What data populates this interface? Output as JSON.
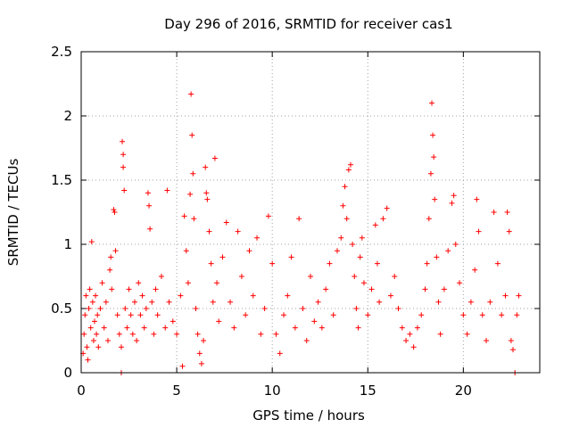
{
  "chart_data": {
    "type": "scatter",
    "title": "Day 296 of 2016, SRMTID for receiver cas1",
    "xlabel": "GPS time / hours",
    "ylabel": "SRMTID / TECUs",
    "xlim": [
      0,
      24
    ],
    "ylim": [
      0,
      2.5
    ],
    "xticks": [
      "0",
      "5",
      "10",
      "15",
      "20"
    ],
    "yticks": [
      "0",
      "0.5",
      "1",
      "1.5",
      "2",
      "2.5"
    ],
    "grid": true,
    "legend": "none",
    "marker": "plus",
    "series": [
      {
        "name": "SRMTID",
        "color": "#ff0000",
        "points": [
          [
            0.1,
            0.15
          ],
          [
            0.15,
            0.3
          ],
          [
            0.2,
            0.45
          ],
          [
            0.25,
            0.6
          ],
          [
            0.3,
            0.2
          ],
          [
            0.35,
            0.1
          ],
          [
            0.4,
            0.5
          ],
          [
            0.45,
            0.65
          ],
          [
            0.5,
            0.35
          ],
          [
            0.55,
            1.02
          ],
          [
            0.6,
            0.55
          ],
          [
            0.65,
            0.25
          ],
          [
            0.7,
            0.4
          ],
          [
            0.75,
            0.6
          ],
          [
            0.8,
            0.3
          ],
          [
            0.85,
            0.45
          ],
          [
            0.9,
            0.2
          ],
          [
            1.0,
            0.5
          ],
          [
            1.1,
            0.7
          ],
          [
            1.2,
            0.35
          ],
          [
            1.3,
            0.55
          ],
          [
            1.4,
            0.25
          ],
          [
            1.5,
            0.8
          ],
          [
            1.55,
            0.9
          ],
          [
            1.6,
            0.65
          ],
          [
            1.7,
            1.27
          ],
          [
            1.75,
            1.25
          ],
          [
            1.8,
            0.95
          ],
          [
            1.9,
            0.45
          ],
          [
            2.0,
            0.3
          ],
          [
            2.1,
            0.2
          ],
          [
            2.1,
            0.0
          ],
          [
            2.15,
            1.8
          ],
          [
            2.2,
            1.7
          ],
          [
            2.2,
            1.6
          ],
          [
            2.25,
            1.42
          ],
          [
            2.3,
            0.5
          ],
          [
            2.4,
            0.35
          ],
          [
            2.5,
            0.65
          ],
          [
            2.6,
            0.45
          ],
          [
            2.7,
            0.3
          ],
          [
            2.8,
            0.55
          ],
          [
            2.9,
            0.25
          ],
          [
            3.0,
            0.7
          ],
          [
            3.1,
            0.45
          ],
          [
            3.2,
            0.6
          ],
          [
            3.3,
            0.35
          ],
          [
            3.4,
            0.5
          ],
          [
            3.5,
            1.4
          ],
          [
            3.55,
            1.3
          ],
          [
            3.6,
            1.12
          ],
          [
            3.7,
            0.55
          ],
          [
            3.8,
            0.3
          ],
          [
            3.9,
            0.65
          ],
          [
            4.0,
            0.45
          ],
          [
            4.2,
            0.75
          ],
          [
            4.4,
            0.35
          ],
          [
            4.5,
            1.42
          ],
          [
            4.6,
            0.55
          ],
          [
            4.8,
            0.4
          ],
          [
            5.0,
            0.3
          ],
          [
            5.2,
            0.6
          ],
          [
            5.3,
            0.05
          ],
          [
            5.4,
            1.22
          ],
          [
            5.5,
            0.95
          ],
          [
            5.6,
            0.7
          ],
          [
            5.7,
            1.39
          ],
          [
            5.75,
            2.17
          ],
          [
            5.8,
            1.85
          ],
          [
            5.85,
            1.55
          ],
          [
            5.9,
            1.2
          ],
          [
            6.0,
            0.5
          ],
          [
            6.1,
            0.3
          ],
          [
            6.2,
            0.15
          ],
          [
            6.3,
            0.07
          ],
          [
            6.4,
            0.25
          ],
          [
            6.5,
            1.6
          ],
          [
            6.55,
            1.4
          ],
          [
            6.6,
            1.35
          ],
          [
            6.7,
            1.1
          ],
          [
            6.8,
            0.85
          ],
          [
            6.9,
            0.55
          ],
          [
            7.0,
            1.67
          ],
          [
            7.1,
            0.7
          ],
          [
            7.2,
            0.4
          ],
          [
            7.4,
            0.9
          ],
          [
            7.6,
            1.17
          ],
          [
            7.8,
            0.55
          ],
          [
            8.0,
            0.35
          ],
          [
            8.2,
            1.1
          ],
          [
            8.4,
            0.75
          ],
          [
            8.6,
            0.45
          ],
          [
            8.8,
            0.95
          ],
          [
            9.0,
            0.6
          ],
          [
            9.2,
            1.05
          ],
          [
            9.4,
            0.3
          ],
          [
            9.6,
            0.5
          ],
          [
            9.8,
            1.22
          ],
          [
            10.0,
            0.85
          ],
          [
            10.2,
            0.3
          ],
          [
            10.4,
            0.15
          ],
          [
            10.6,
            0.45
          ],
          [
            10.8,
            0.6
          ],
          [
            11.0,
            0.9
          ],
          [
            11.2,
            0.35
          ],
          [
            11.4,
            1.2
          ],
          [
            11.6,
            0.5
          ],
          [
            11.8,
            0.25
          ],
          [
            12.0,
            0.75
          ],
          [
            12.2,
            0.4
          ],
          [
            12.4,
            0.55
          ],
          [
            12.6,
            0.35
          ],
          [
            12.8,
            0.65
          ],
          [
            13.0,
            0.85
          ],
          [
            13.2,
            0.45
          ],
          [
            13.4,
            0.95
          ],
          [
            13.6,
            1.05
          ],
          [
            13.7,
            1.3
          ],
          [
            13.8,
            1.45
          ],
          [
            13.9,
            1.2
          ],
          [
            14.0,
            1.58
          ],
          [
            14.1,
            1.62
          ],
          [
            14.2,
            1.0
          ],
          [
            14.3,
            0.75
          ],
          [
            14.4,
            0.5
          ],
          [
            14.5,
            0.35
          ],
          [
            14.6,
            0.9
          ],
          [
            14.7,
            1.05
          ],
          [
            14.8,
            0.7
          ],
          [
            15.0,
            0.45
          ],
          [
            15.2,
            0.65
          ],
          [
            15.4,
            1.15
          ],
          [
            15.5,
            0.85
          ],
          [
            15.6,
            0.55
          ],
          [
            15.8,
            1.2
          ],
          [
            16.0,
            1.28
          ],
          [
            16.2,
            0.6
          ],
          [
            16.4,
            0.75
          ],
          [
            16.6,
            0.5
          ],
          [
            16.8,
            0.35
          ],
          [
            17.0,
            0.25
          ],
          [
            17.2,
            0.3
          ],
          [
            17.4,
            0.2
          ],
          [
            17.6,
            0.35
          ],
          [
            17.8,
            0.45
          ],
          [
            18.0,
            0.65
          ],
          [
            18.1,
            0.85
          ],
          [
            18.2,
            1.2
          ],
          [
            18.3,
            1.55
          ],
          [
            18.35,
            2.1
          ],
          [
            18.4,
            1.85
          ],
          [
            18.45,
            1.68
          ],
          [
            18.5,
            1.35
          ],
          [
            18.6,
            0.9
          ],
          [
            18.7,
            0.55
          ],
          [
            18.8,
            0.3
          ],
          [
            19.0,
            0.65
          ],
          [
            19.2,
            0.95
          ],
          [
            19.4,
            1.32
          ],
          [
            19.5,
            1.38
          ],
          [
            19.6,
            1.0
          ],
          [
            19.8,
            0.7
          ],
          [
            20.0,
            0.45
          ],
          [
            20.2,
            0.3
          ],
          [
            20.4,
            0.55
          ],
          [
            20.6,
            0.8
          ],
          [
            20.7,
            1.35
          ],
          [
            20.8,
            1.1
          ],
          [
            21.0,
            0.45
          ],
          [
            21.2,
            0.25
          ],
          [
            21.4,
            0.55
          ],
          [
            21.6,
            1.25
          ],
          [
            21.8,
            0.85
          ],
          [
            22.0,
            0.45
          ],
          [
            22.2,
            0.6
          ],
          [
            22.3,
            1.25
          ],
          [
            22.4,
            1.1
          ],
          [
            22.5,
            0.25
          ],
          [
            22.6,
            0.18
          ],
          [
            22.7,
            0.0
          ],
          [
            22.8,
            0.45
          ],
          [
            22.9,
            0.6
          ]
        ]
      }
    ]
  },
  "colors": {
    "series": "#ff0000",
    "grid": "#a0a0a0",
    "axis": "#000000",
    "background": "#ffffff"
  }
}
